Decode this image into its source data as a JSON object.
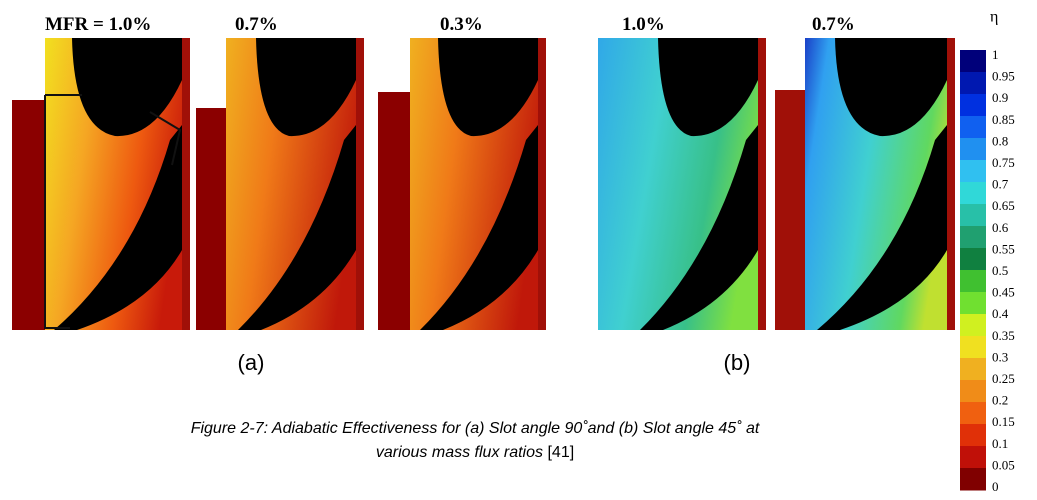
{
  "panels_a": {
    "labels": [
      "MFR = 1.0%",
      "0.7%",
      "0.3%"
    ],
    "caption": "(a)"
  },
  "panels_b": {
    "labels": [
      "1.0%",
      "0.7%"
    ],
    "caption": "(b)"
  },
  "figure_caption": {
    "line1": "Figure 2-7: Adiabatic Effectiveness for (a) Slot angle 90˚and  (b) Slot angle 45˚ at",
    "line2": "various mass flux ratios",
    "reference": "[41]"
  },
  "colorbar": {
    "title": "η",
    "labels": [
      "1",
      "0.95",
      "0.9",
      "0.85",
      "0.8",
      "0.75",
      "0.7",
      "0.65",
      "0.6",
      "0.55",
      "0.5",
      "0.45",
      "0.4",
      "0.35",
      "0.3",
      "0.25",
      "0.2",
      "0.15",
      "0.1",
      "0.05",
      "0"
    ]
  }
}
